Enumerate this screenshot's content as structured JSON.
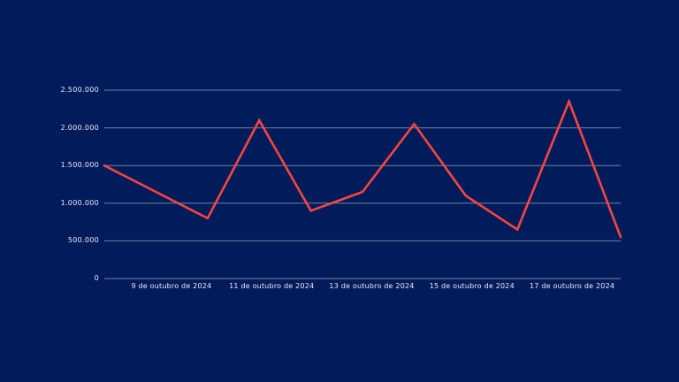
{
  "page": {
    "background_color": "#021c5b"
  },
  "chart_data": {
    "type": "line",
    "title": "",
    "x_tick_labels": [
      "9 de outubro de 2024",
      "11 de outubro de 2024",
      "13 de outubro de 2024",
      "15 de outubro de 2024",
      "17 de outubro de 2024"
    ],
    "y_tick_labels": [
      "2.500.000",
      "2.000.000",
      "1.500.000",
      "1.000.000",
      "500.000",
      "0"
    ],
    "ylim": [
      0,
      2500000
    ],
    "grid": true,
    "legend_position": "none",
    "line_color": "#f7453f",
    "grid_color": "rgba(255,255,255,0.45)",
    "text_color": "#e9ecf5",
    "series": [
      {
        "name": "",
        "values": [
          1500000,
          1150000,
          800000,
          2100000,
          900000,
          1150000,
          2050000,
          1100000,
          650000,
          2350000,
          550000
        ]
      }
    ],
    "labeled_point_indices": [
      1,
      3,
      5,
      7,
      9
    ]
  }
}
